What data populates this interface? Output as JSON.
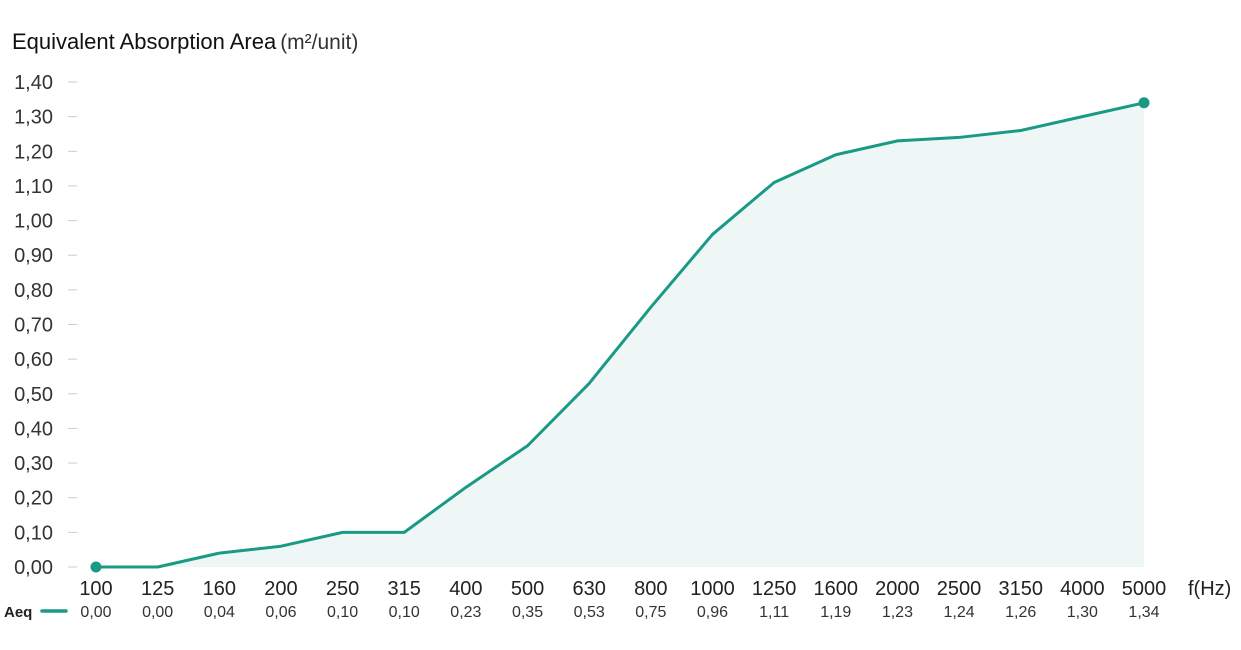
{
  "chart_data": {
    "type": "area",
    "title": "Equivalent Absorption Area",
    "title_unit": "(m²/unit)",
    "xlabel": "f(Hz)",
    "series": [
      {
        "name": "Aeq",
        "color": "#1a9a85",
        "fill": "#eef7f5",
        "values": [
          0.0,
          0.0,
          0.04,
          0.06,
          0.1,
          0.1,
          0.23,
          0.35,
          0.53,
          0.75,
          0.96,
          1.11,
          1.19,
          1.23,
          1.24,
          1.26,
          1.3,
          1.34
        ]
      }
    ],
    "categories": [
      "100",
      "125",
      "160",
      "200",
      "250",
      "315",
      "400",
      "500",
      "630",
      "800",
      "1000",
      "1250",
      "1600",
      "2000",
      "2500",
      "3150",
      "4000",
      "5000"
    ],
    "value_labels": [
      "0,00",
      "0,00",
      "0,04",
      "0,06",
      "0,10",
      "0,10",
      "0,23",
      "0,35",
      "0,53",
      "0,75",
      "0,96",
      "1,11",
      "1,19",
      "1,23",
      "1,24",
      "1,26",
      "1,30",
      "1,34"
    ],
    "y_ticks": [
      "0,00",
      "0,10",
      "0,20",
      "0,30",
      "0,40",
      "0,50",
      "0,60",
      "0,70",
      "0,80",
      "0,90",
      "1,00",
      "1,10",
      "1,20",
      "1,30",
      "1,40"
    ],
    "ylim": [
      0,
      1.4
    ],
    "grid": false,
    "legend_placement": "bottom-left",
    "endpoint_markers": true
  }
}
